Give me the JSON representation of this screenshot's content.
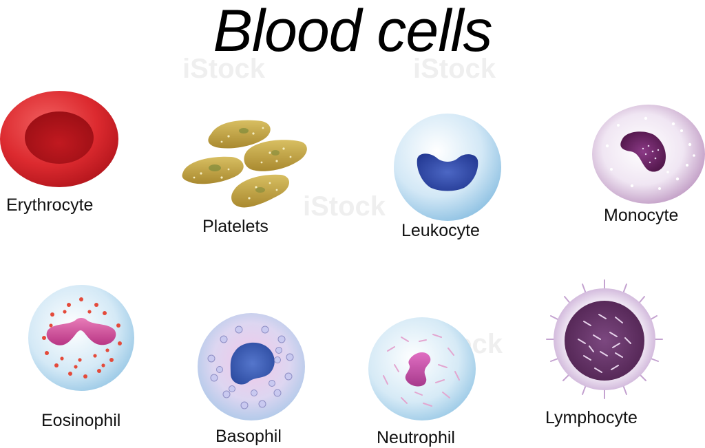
{
  "title": "Blood cells",
  "cells": {
    "erythrocyte": "Erythrocyte",
    "platelets": "Platelets",
    "leukocyte": "Leukocyte",
    "monocyte": "Monocyte",
    "eosinophil": "Eosinophil",
    "basophil": "Basophil",
    "neutrophil": "Neutrophil",
    "lymphocyte": "Lymphocyte"
  },
  "watermark": "iStock",
  "colors": {
    "erythrocyte": "#d7252b",
    "platelet": "#c8a74a",
    "leukocyte_nucleus": "#2f4aa8",
    "monocyte_nucleus": "#6a2060",
    "eosinophil_nucleus": "#d04a96",
    "basophil_nucleus": "#3858b0",
    "neutrophil_nucleus": "#c857a8",
    "lymphocyte_nucleus": "#6b3a6e"
  }
}
